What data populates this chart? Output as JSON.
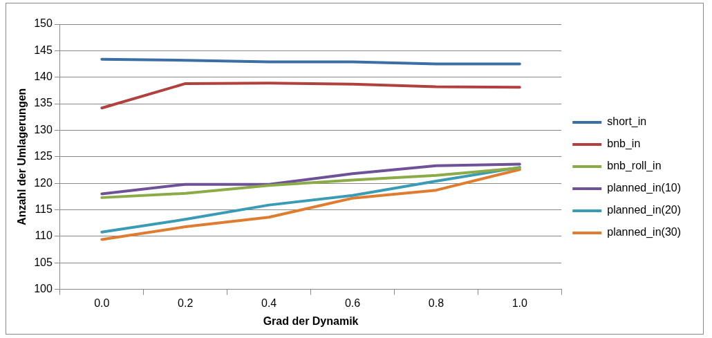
{
  "chart_data": {
    "type": "line",
    "xlabel": "Grad der Dynamik",
    "ylabel": "Anzahl der Umlagerungen",
    "categories": [
      "0.0",
      "0.2",
      "0.4",
      "0.6",
      "0.8",
      "1.0"
    ],
    "series": [
      {
        "name": "short_in",
        "color": "#3a6ea5",
        "values": [
          143.4,
          143.2,
          142.9,
          142.9,
          142.5,
          142.5
        ]
      },
      {
        "name": "bnb_in",
        "color": "#b0413e",
        "values": [
          134.2,
          138.8,
          138.9,
          138.7,
          138.2,
          138.1
        ]
      },
      {
        "name": "bnb_roll_in",
        "color": "#8aab45",
        "values": [
          117.3,
          118.1,
          119.6,
          120.6,
          121.5,
          122.9
        ]
      },
      {
        "name": "planned_in(10)",
        "color": "#6e5196",
        "values": [
          118.0,
          119.8,
          119.8,
          121.8,
          123.3,
          123.6
        ]
      },
      {
        "name": "planned_in(20)",
        "color": "#3a9bb5",
        "values": [
          110.8,
          113.2,
          115.9,
          117.7,
          120.4,
          123.0
        ]
      },
      {
        "name": "planned_in(30)",
        "color": "#e07c30",
        "values": [
          109.4,
          111.8,
          113.6,
          117.2,
          118.7,
          122.6
        ]
      }
    ],
    "ylim": [
      100,
      150
    ],
    "yticks": [
      100,
      105,
      110,
      115,
      120,
      125,
      130,
      135,
      140,
      145,
      150
    ],
    "grid": "y",
    "legend": "right",
    "marker": "none",
    "line_style": "solid"
  }
}
